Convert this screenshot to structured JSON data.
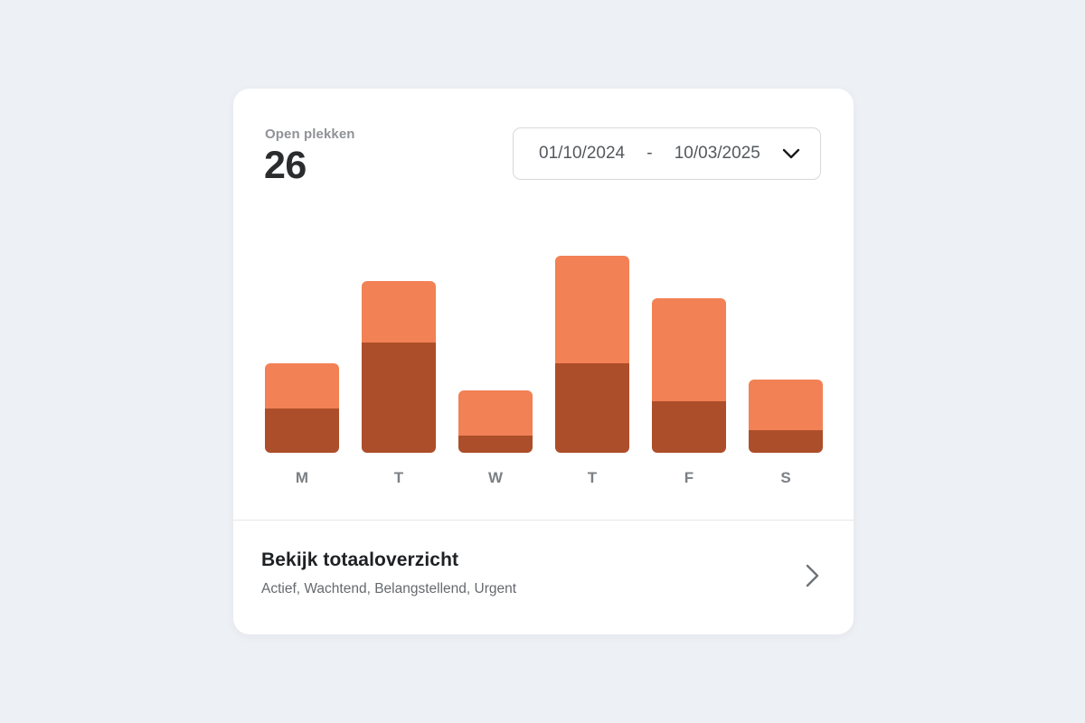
{
  "page": {
    "background_color": "#EDF0F4",
    "card_color": "#FFFFFF"
  },
  "header": {
    "label": "Open plekken",
    "value": "26"
  },
  "date_range": {
    "start": "01/10/2024",
    "separator": "-",
    "end": "10/03/2025",
    "icon": "chevron-down"
  },
  "chart_data": {
    "type": "bar",
    "stacked": true,
    "title": "Open plekken",
    "xlabel": "",
    "ylabel": "",
    "categories": [
      "M",
      "T",
      "W",
      "T",
      "F",
      "S"
    ],
    "series": [
      {
        "name": "bottom-dark",
        "color": "#AC4E2A",
        "values": [
          49,
          122,
          19,
          99,
          57,
          25
        ]
      },
      {
        "name": "top-orange",
        "color": "#F28155",
        "values": [
          50,
          68,
          50,
          119,
          114,
          56
        ]
      }
    ],
    "totals": [
      99,
      190,
      69,
      218,
      171,
      81
    ],
    "unit": "relative-units",
    "ylim": [
      0,
      243
    ],
    "grid": false,
    "legend": false,
    "axis_label_color": "#7C8085"
  },
  "footer": {
    "title": "Bekijk totaaloverzicht",
    "subtitle": "Actief, Wachtend, Belangstellend, Urgent",
    "icon": "chevron-right"
  },
  "colors": {
    "bar_dark": "#AC4E2A",
    "bar_orange": "#F28155",
    "metric_label": "#8F9296",
    "metric_value": "#2B2C2E",
    "date_text": "#55595F",
    "date_border": "#D5D8DC",
    "divider": "#E5E7E9",
    "footer_title": "#1E2023",
    "footer_subtitle": "#65696F",
    "chevron_right": "#6E7276",
    "chevron_down": "#1A1B1D"
  }
}
